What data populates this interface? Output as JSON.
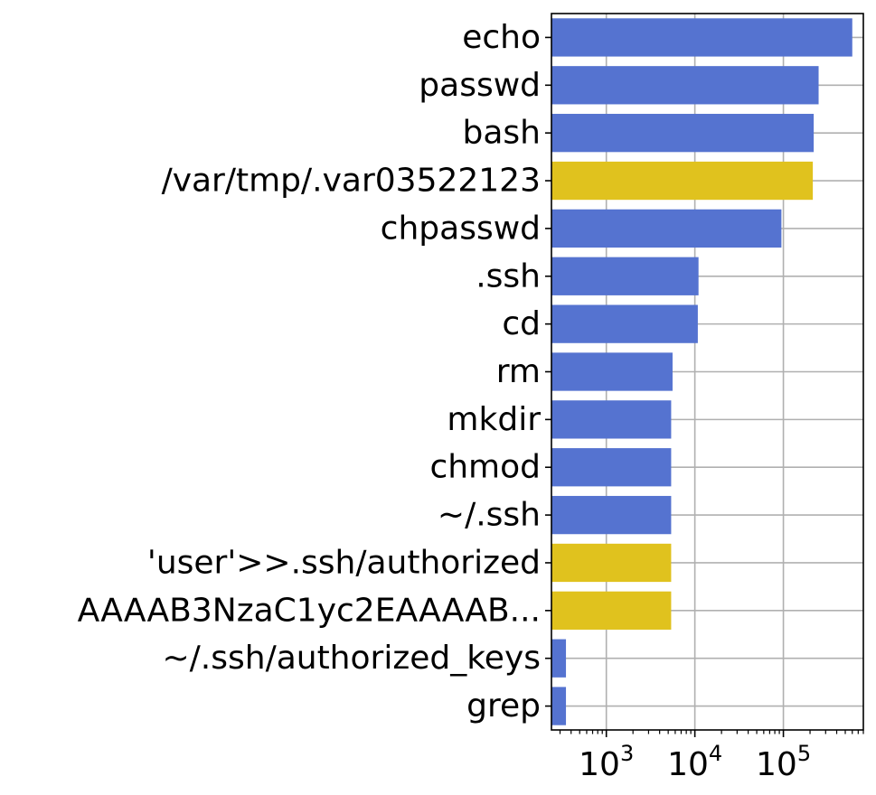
{
  "chart_data": {
    "type": "bar",
    "orientation": "horizontal",
    "xscale": "log",
    "xlim": [
      240,
      800000
    ],
    "xticks": [
      1000,
      10000,
      100000
    ],
    "xtick_labels": [
      {
        "base": "10",
        "exp": "3"
      },
      {
        "base": "10",
        "exp": "4"
      },
      {
        "base": "10",
        "exp": "5"
      }
    ],
    "grid": true,
    "colors": {
      "default": "#5573d0",
      "highlight": "#e0c21e"
    },
    "categories": [
      "echo",
      "passwd",
      "bash",
      "/var/tmp/.var03522123",
      "chpasswd",
      ".ssh",
      "cd",
      "rm",
      "mkdir",
      "chmod",
      "~/.ssh",
      "'user'>>.ssh/authorized",
      "AAAAB3NzaC1yc2EAAAAB...",
      "~/.ssh/authorized_keys",
      "grep"
    ],
    "values": [
      600000,
      250000,
      220000,
      215000,
      95000,
      11000,
      10800,
      5600,
      5400,
      5400,
      5400,
      5400,
      5400,
      350,
      350
    ],
    "highlighted": [
      false,
      false,
      false,
      true,
      false,
      false,
      false,
      false,
      false,
      false,
      false,
      true,
      true,
      false,
      false
    ],
    "title": "",
    "xlabel": "",
    "ylabel": ""
  }
}
